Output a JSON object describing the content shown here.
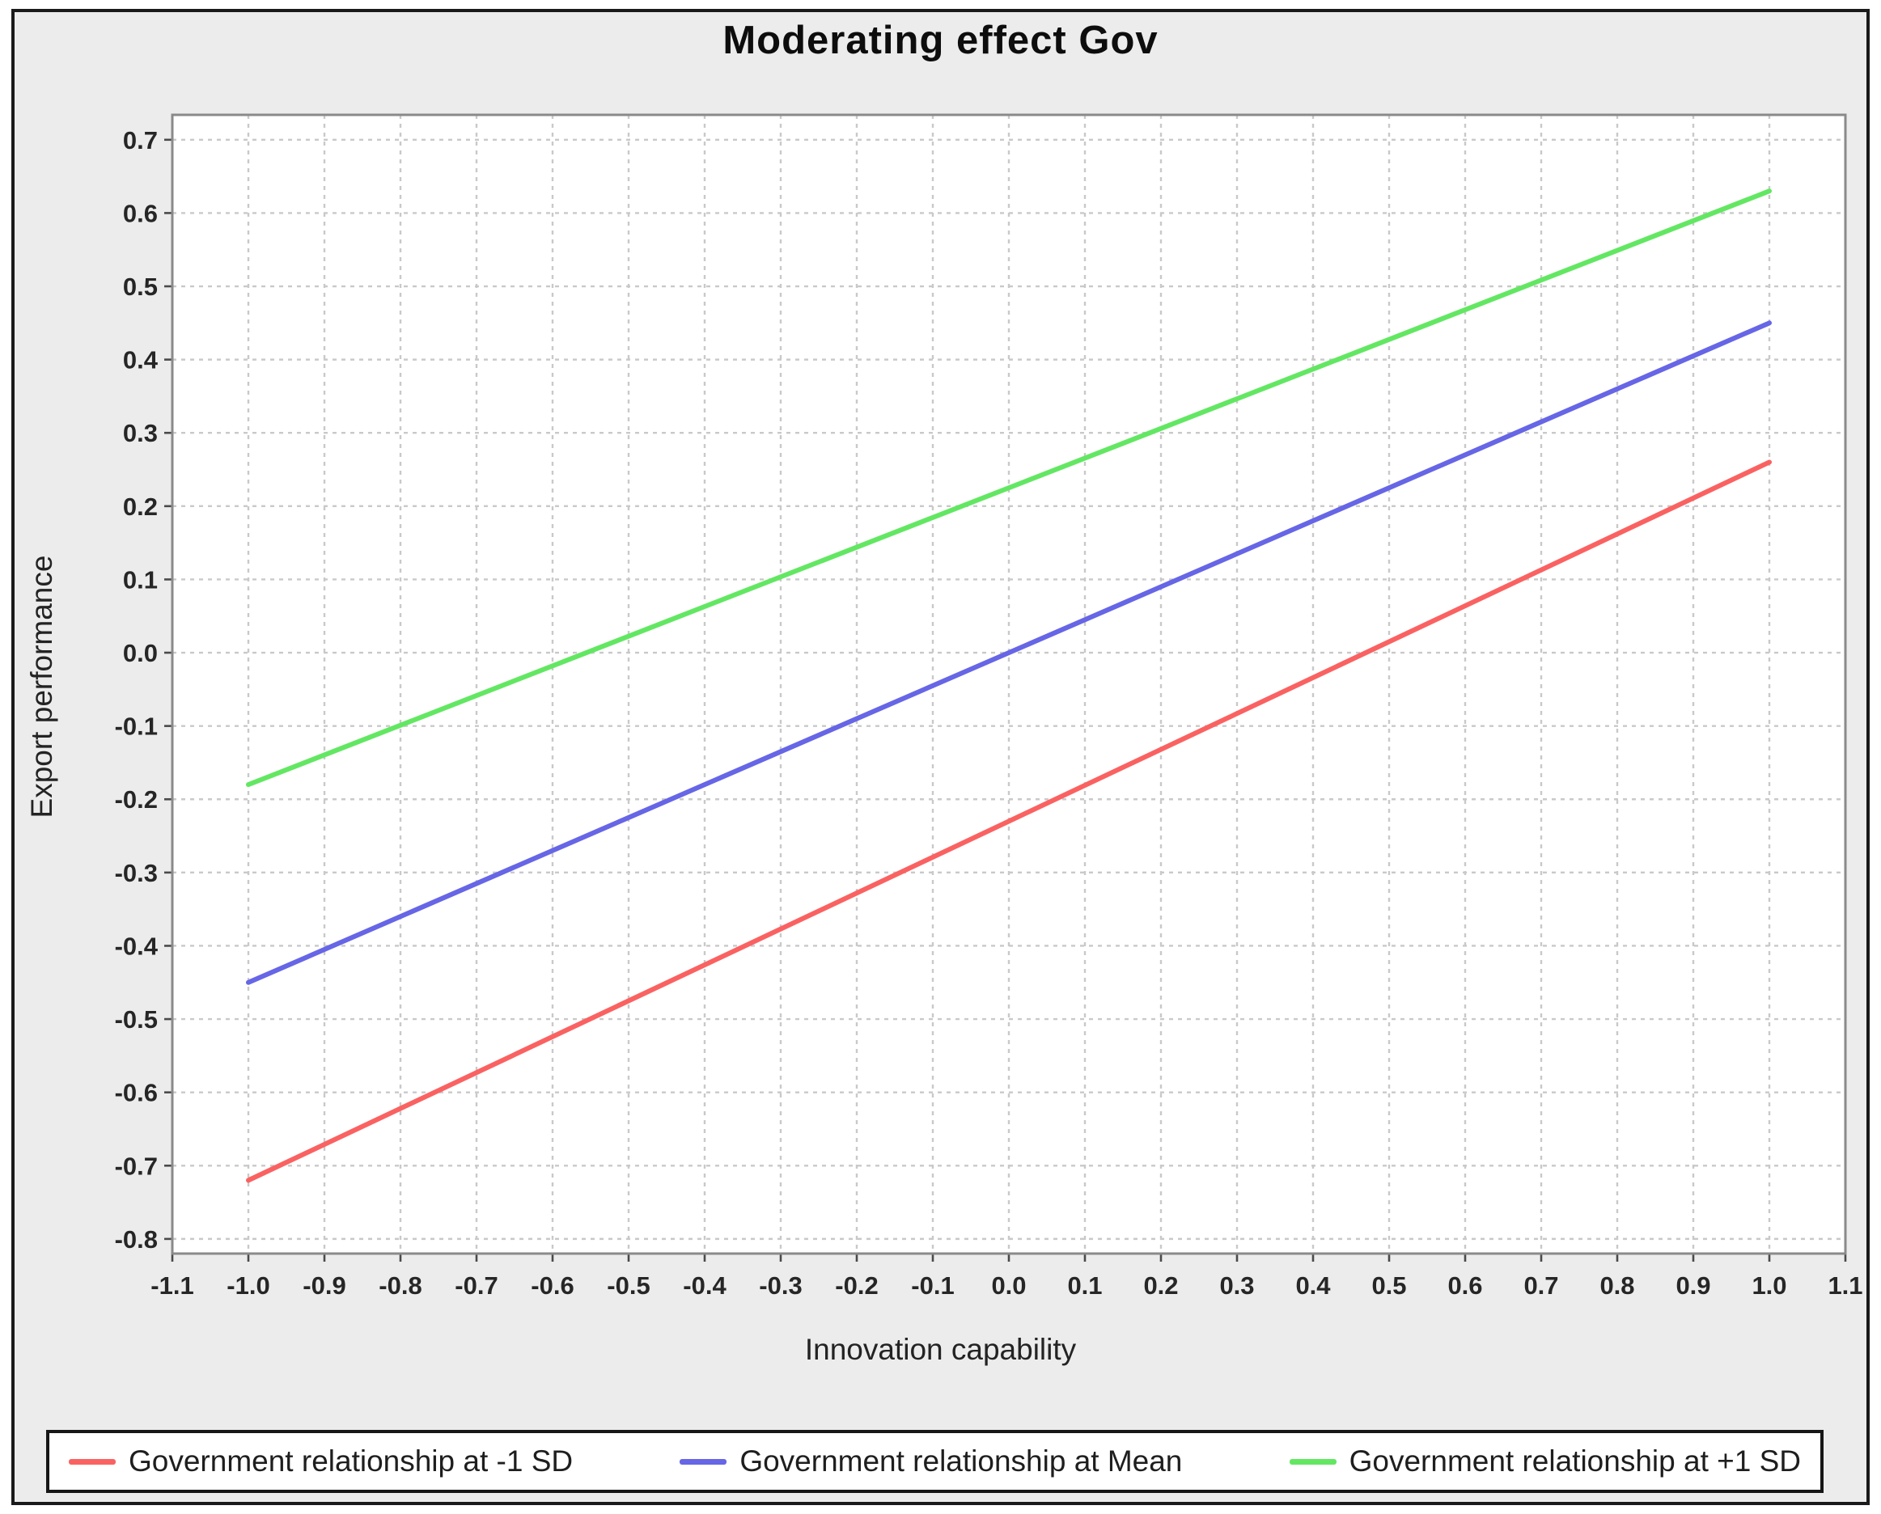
{
  "window": {
    "panel_background": "#ececec",
    "panel_border_color": "#1a1a1a",
    "plot_background": "#ffffff",
    "plot_border_color": "#8a8a8a",
    "gridline_color": "#c9c9c9",
    "tick_label_color": "#262626"
  },
  "chart_data": {
    "type": "line",
    "title": "Moderating effect Gov",
    "xlabel": "Innovation capability",
    "ylabel": "Export performance",
    "xlim": [
      -1.1,
      1.1
    ],
    "ylim": [
      -0.8,
      0.7
    ],
    "grid": "dotted, both axes, every 0.1",
    "legend_position": "bottom",
    "x_ticks": [
      "-1.1",
      "-1.0",
      "-0.9",
      "-0.8",
      "-0.7",
      "-0.6",
      "-0.5",
      "-0.4",
      "-0.3",
      "-0.2",
      "-0.1",
      "0.0",
      "0.1",
      "0.2",
      "0.3",
      "0.4",
      "0.5",
      "0.6",
      "0.7",
      "0.8",
      "0.9",
      "1.0",
      "1.1"
    ],
    "y_ticks": [
      "0.7",
      "0.6",
      "0.5",
      "0.4",
      "0.3",
      "0.2",
      "0.1",
      "0.0",
      "-0.1",
      "-0.2",
      "-0.3",
      "-0.4",
      "-0.5",
      "-0.6",
      "-0.7",
      "-0.8"
    ],
    "series": [
      {
        "name": "Government relationship at -1 SD",
        "color": "#fa6262",
        "x": [
          -1.0,
          1.0
        ],
        "y": [
          -0.72,
          0.26
        ]
      },
      {
        "name": "Government relationship at Mean",
        "color": "#6666e6",
        "x": [
          -1.0,
          1.0
        ],
        "y": [
          -0.45,
          0.45
        ]
      },
      {
        "name": "Government relationship at +1 SD",
        "color": "#63e763",
        "x": [
          -1.0,
          1.0
        ],
        "y": [
          -0.18,
          0.63
        ]
      }
    ]
  }
}
